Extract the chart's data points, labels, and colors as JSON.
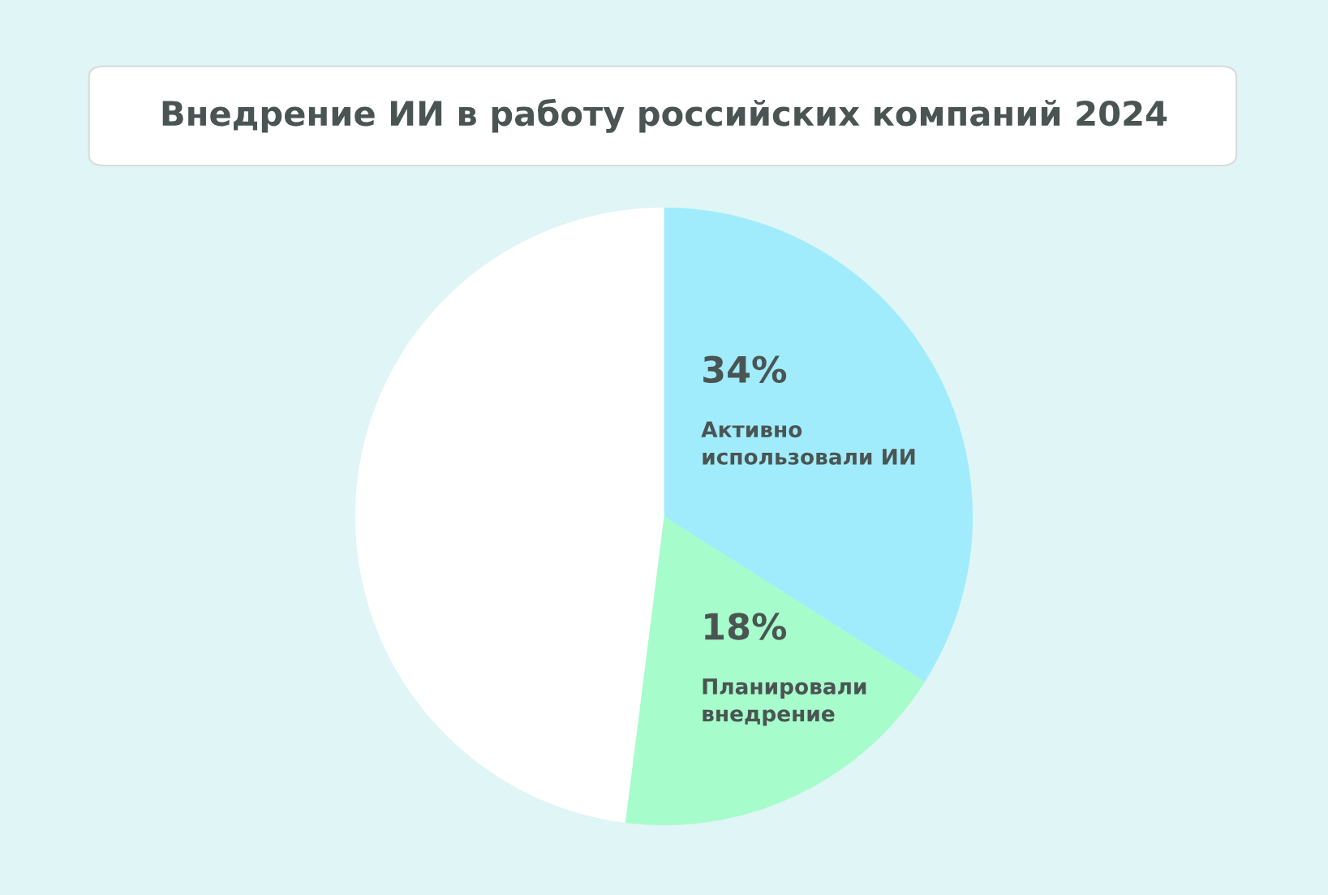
{
  "chart_data": {
    "type": "pie",
    "title": "Внедрение ИИ в работу российских компаний 2024",
    "categories": [
      "Активно использовали ИИ",
      "Планировали внедрение",
      null
    ],
    "values": [
      34,
      18,
      48
    ],
    "colors": [
      "#a0ecfc",
      "#a6fcca",
      "#ffffff"
    ],
    "value_labels": [
      "34%",
      "18%",
      null
    ],
    "legend": false
  }
}
